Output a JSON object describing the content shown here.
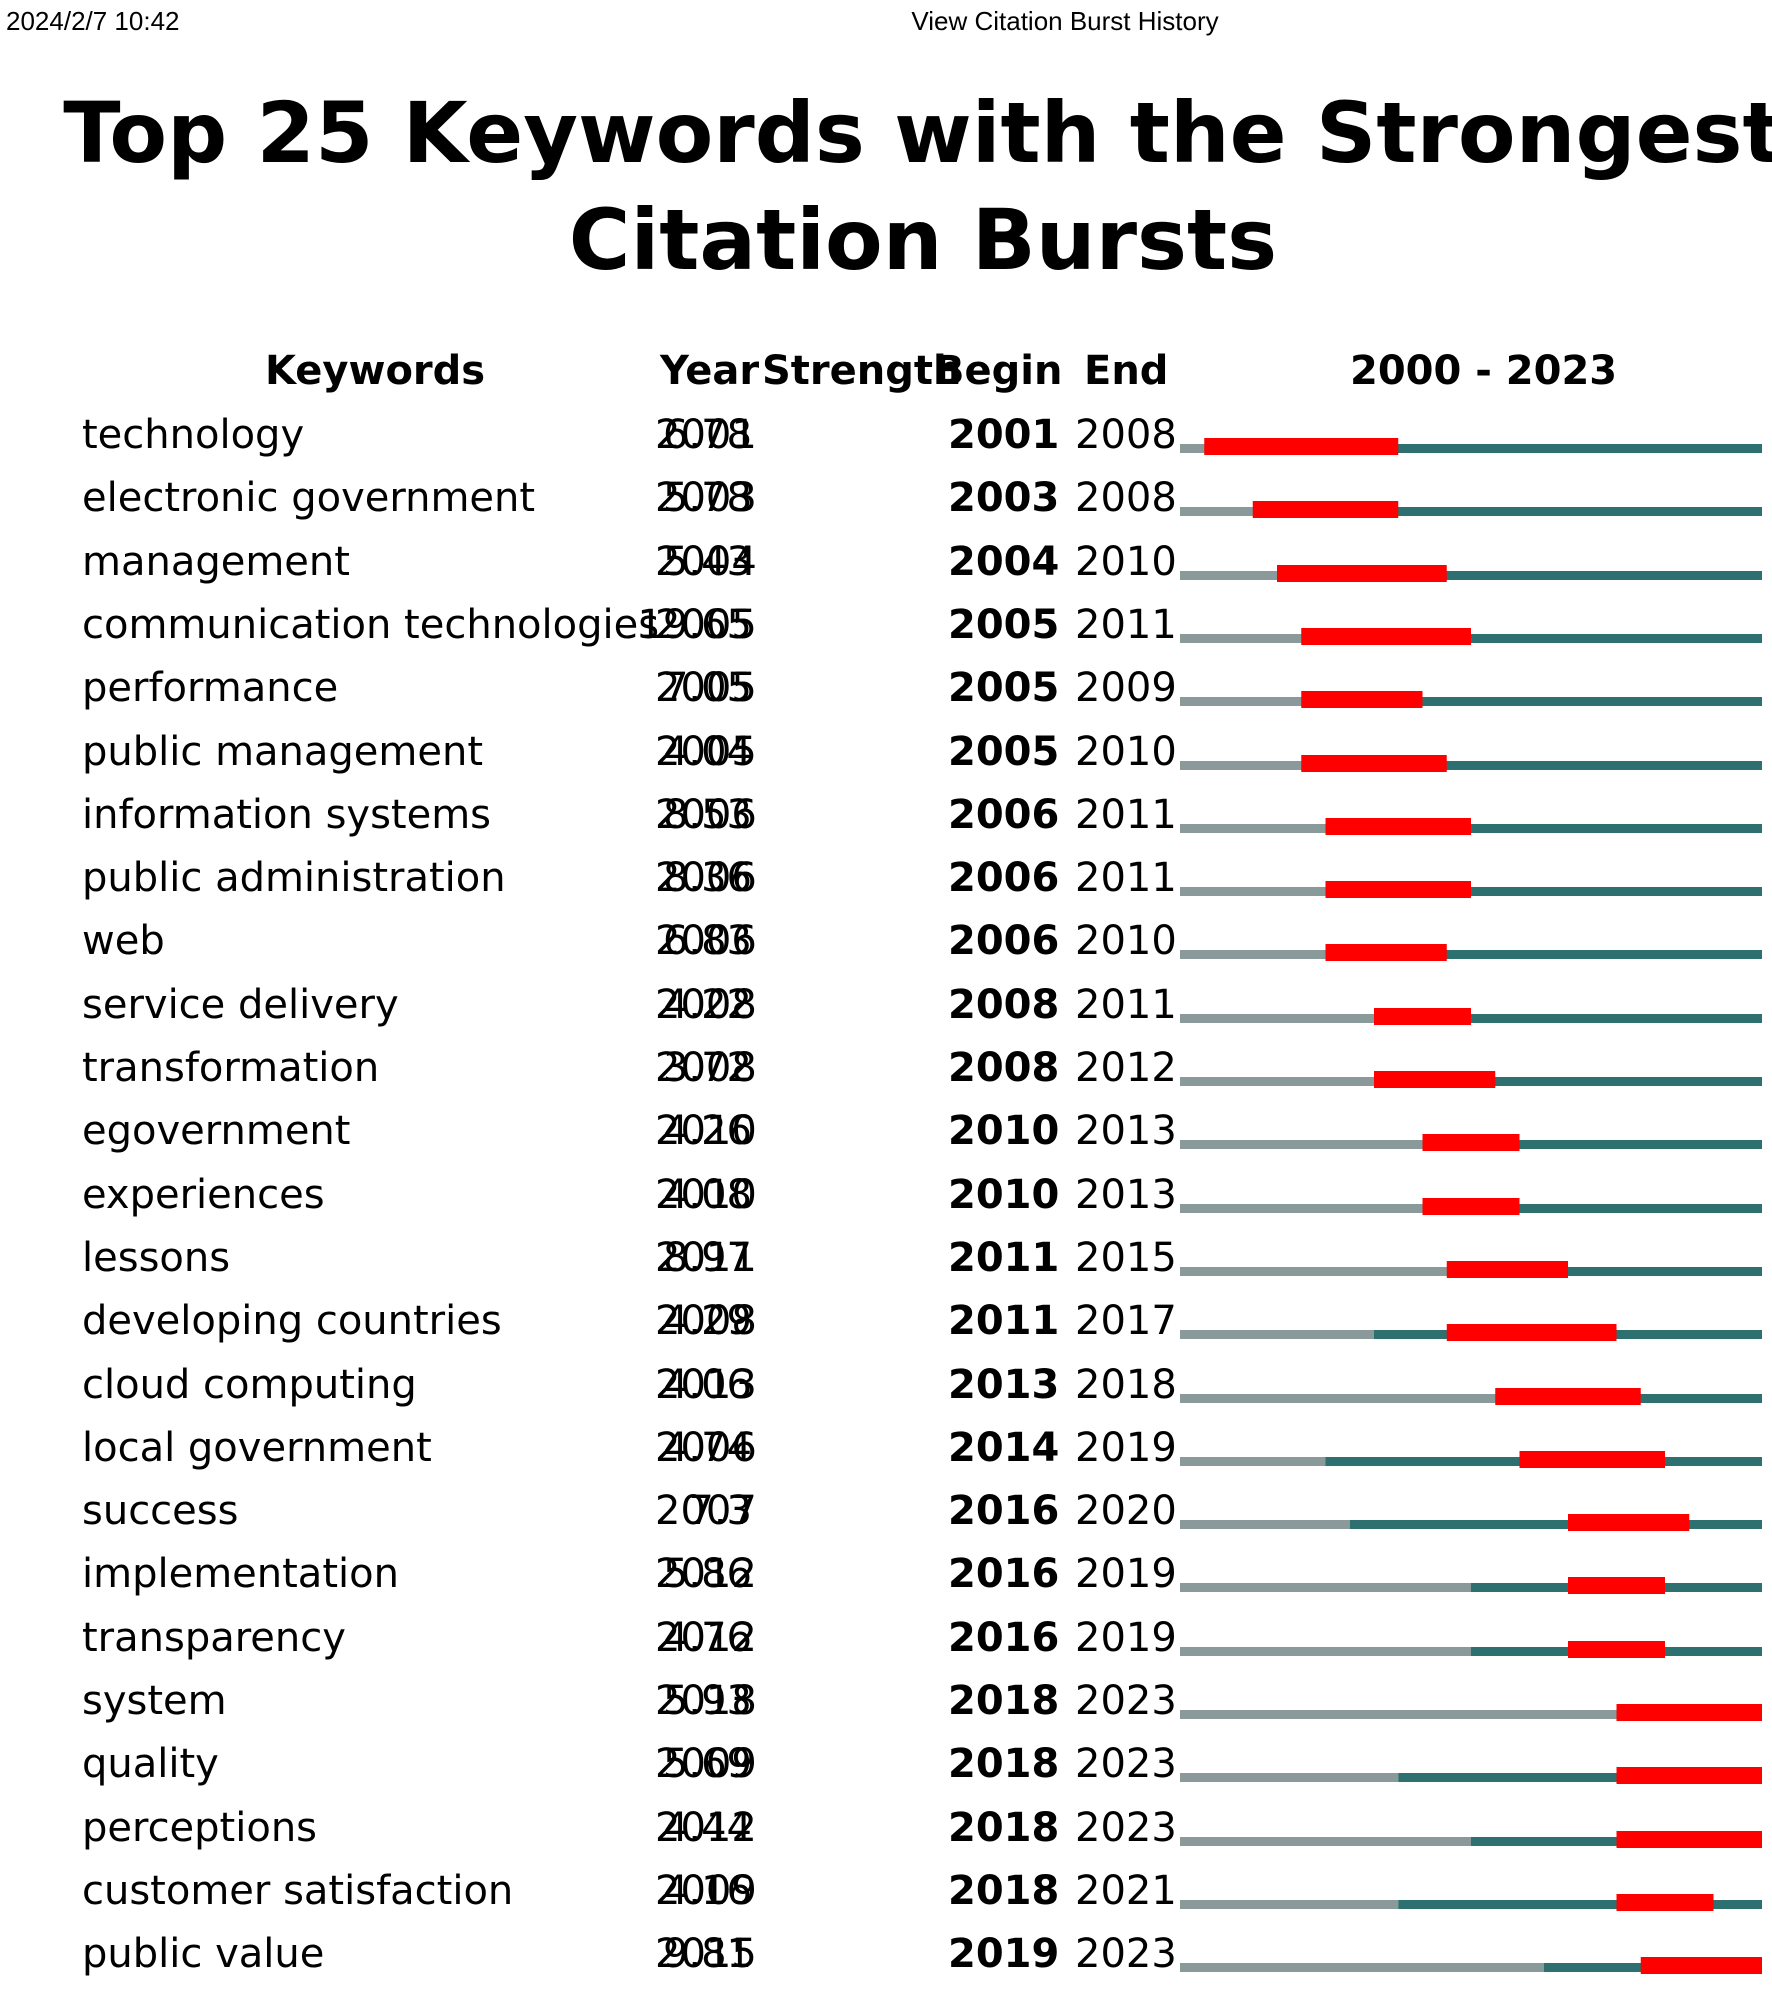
{
  "header": {
    "datetime": "2024/2/7 10:42",
    "page_title": "View Citation Burst History"
  },
  "colors": {
    "before_first_year": "#8a9a9a",
    "active": "#2e6f6f",
    "burst": "#ff0000"
  },
  "chart_data": {
    "type": "table",
    "title": "Top 25 Keywords with the Strongest Citation Bursts",
    "columns": [
      "Keywords",
      "Year",
      "Strength",
      "Begin",
      "End"
    ],
    "timeline_label": "2000 - 2023",
    "range": [
      2000,
      2023
    ],
    "rows": [
      {
        "keyword": "technology",
        "year": "2001",
        "strength": "6.78",
        "begin": "2001",
        "end": "2008"
      },
      {
        "keyword": "electronic government",
        "year": "2003",
        "strength": "5.78",
        "begin": "2003",
        "end": "2008"
      },
      {
        "keyword": "management",
        "year": "2004",
        "strength": "5.43",
        "begin": "2004",
        "end": "2010"
      },
      {
        "keyword": "communication technologies",
        "year": "2005",
        "strength": "19.65",
        "begin": "2005",
        "end": "2011"
      },
      {
        "keyword": "performance",
        "year": "2005",
        "strength": "7.05",
        "begin": "2005",
        "end": "2009"
      },
      {
        "keyword": "public management",
        "year": "2005",
        "strength": "4.04",
        "begin": "2005",
        "end": "2010"
      },
      {
        "keyword": "information systems",
        "year": "2006",
        "strength": "8.53",
        "begin": "2006",
        "end": "2011"
      },
      {
        "keyword": "public administration",
        "year": "2006",
        "strength": "8.36",
        "begin": "2006",
        "end": "2011"
      },
      {
        "keyword": "web",
        "year": "2006",
        "strength": "6.83",
        "begin": "2006",
        "end": "2010"
      },
      {
        "keyword": "service delivery",
        "year": "2008",
        "strength": "4.22",
        "begin": "2008",
        "end": "2011"
      },
      {
        "keyword": "transformation",
        "year": "2008",
        "strength": "3.72",
        "begin": "2008",
        "end": "2012"
      },
      {
        "keyword": "egovernment",
        "year": "2010",
        "strength": "4.26",
        "begin": "2010",
        "end": "2013"
      },
      {
        "keyword": "experiences",
        "year": "2010",
        "strength": "4.08",
        "begin": "2010",
        "end": "2013"
      },
      {
        "keyword": "lessons",
        "year": "2011",
        "strength": "8.97",
        "begin": "2011",
        "end": "2015"
      },
      {
        "keyword": "developing countries",
        "year": "2008",
        "strength": "4.29",
        "begin": "2011",
        "end": "2017"
      },
      {
        "keyword": "cloud computing",
        "year": "2013",
        "strength": "4.06",
        "begin": "2013",
        "end": "2018"
      },
      {
        "keyword": "local government",
        "year": "2006",
        "strength": "4.74",
        "begin": "2014",
        "end": "2019"
      },
      {
        "keyword": "success",
        "year": "2007",
        "strength": "7.3",
        "begin": "2016",
        "end": "2020"
      },
      {
        "keyword": "implementation",
        "year": "2012",
        "strength": "5.86",
        "begin": "2016",
        "end": "2019"
      },
      {
        "keyword": "transparency",
        "year": "2012",
        "strength": "4.76",
        "begin": "2016",
        "end": "2019"
      },
      {
        "keyword": "system",
        "year": "2018",
        "strength": "5.93",
        "begin": "2018",
        "end": "2023"
      },
      {
        "keyword": "quality",
        "year": "2009",
        "strength": "5.69",
        "begin": "2018",
        "end": "2023"
      },
      {
        "keyword": "perceptions",
        "year": "2012",
        "strength": "4.44",
        "begin": "2018",
        "end": "2023"
      },
      {
        "keyword": "customer satisfaction",
        "year": "2009",
        "strength": "4.16",
        "begin": "2018",
        "end": "2021"
      },
      {
        "keyword": "public value",
        "year": "2015",
        "strength": "9.81",
        "begin": "2019",
        "end": "2023"
      }
    ]
  }
}
